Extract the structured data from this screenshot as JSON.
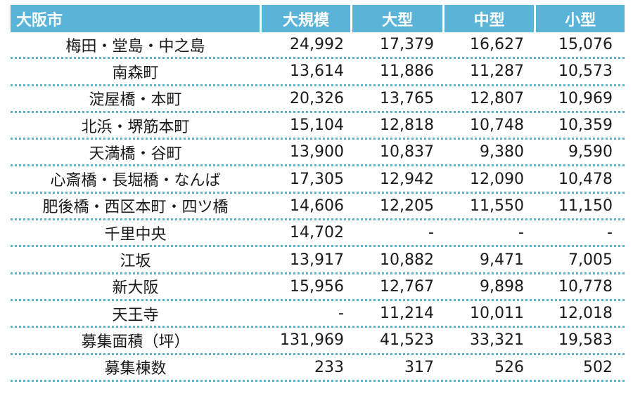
{
  "table": {
    "headers": [
      "大阪市",
      "大規模",
      "大型",
      "中型",
      "小型"
    ],
    "rows": [
      [
        "梅田・堂島・中之島",
        "24,992",
        "17,379",
        "16,627",
        "15,076"
      ],
      [
        "南森町",
        "13,614",
        "11,886",
        "11,287",
        "10,573"
      ],
      [
        "淀屋橋・本町",
        "20,326",
        "13,765",
        "12,807",
        "10,969"
      ],
      [
        "北浜・堺筋本町",
        "15,104",
        "12,818",
        "10,748",
        "10,359"
      ],
      [
        "天満橋・谷町",
        "13,900",
        "10,837",
        "9,380",
        "9,590"
      ],
      [
        "心斎橋・長堀橋・なんば",
        "17,305",
        "12,942",
        "12,090",
        "10,478"
      ],
      [
        "肥後橋・西区本町・四ツ橋",
        "14,606",
        "12,205",
        "11,550",
        "11,150"
      ],
      [
        "千里中央",
        "14,702",
        "-",
        "-",
        "-"
      ],
      [
        "江坂",
        "13,917",
        "10,882",
        "9,471",
        "7,005"
      ],
      [
        "新大阪",
        "15,956",
        "12,767",
        "9,898",
        "10,778"
      ],
      [
        "天王寺",
        "-",
        "11,214",
        "10,011",
        "12,018"
      ],
      [
        "募集面積（坪）",
        "131,969",
        "41,523",
        "33,321",
        "19,583"
      ],
      [
        "募集棟数",
        "233",
        "317",
        "526",
        "502"
      ]
    ],
    "header_color": "#5ab4d8",
    "separator_color": "#5ab4d8"
  }
}
